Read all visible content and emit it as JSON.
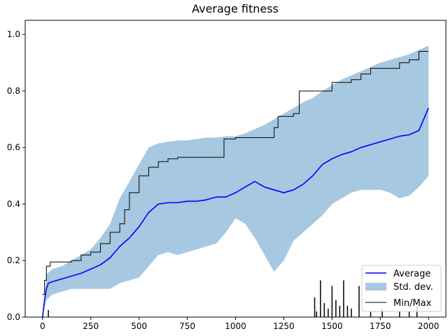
{
  "chart_data": {
    "type": "line",
    "title": "Average fitness",
    "xlabel": "",
    "ylabel": "",
    "xlim": [
      -90,
      2090
    ],
    "ylim": [
      0,
      1.05
    ],
    "x_ticks": [
      0,
      250,
      500,
      750,
      1000,
      1250,
      1500,
      1750,
      2000
    ],
    "x_tick_labels": [
      "0",
      "250",
      "500",
      "750",
      "1000",
      "1250",
      "1500",
      "1750",
      "2000"
    ],
    "y_ticks": [
      0,
      0.2,
      0.4,
      0.6,
      0.8,
      1.0
    ],
    "y_tick_labels": [
      "0.0",
      "0.2",
      "0.4",
      "0.6",
      "0.8",
      "1.0"
    ],
    "grid": false,
    "legend_position": "bottom-right",
    "colors": {
      "average": "#0000ff",
      "std": "#a6c8e1",
      "minmax": "#000000"
    },
    "series": [
      {
        "name": "Average",
        "style": "line",
        "x": [
          0,
          10,
          20,
          30,
          50,
          100,
          150,
          200,
          250,
          300,
          350,
          400,
          450,
          500,
          550,
          600,
          650,
          700,
          750,
          800,
          850,
          900,
          950,
          1000,
          1050,
          1100,
          1150,
          1200,
          1250,
          1300,
          1350,
          1400,
          1450,
          1500,
          1550,
          1600,
          1650,
          1700,
          1750,
          1800,
          1850,
          1900,
          1950,
          2000
        ],
        "y": [
          0.0,
          0.06,
          0.1,
          0.12,
          0.125,
          0.135,
          0.145,
          0.155,
          0.17,
          0.185,
          0.21,
          0.25,
          0.28,
          0.32,
          0.37,
          0.4,
          0.405,
          0.405,
          0.41,
          0.41,
          0.415,
          0.425,
          0.425,
          0.44,
          0.46,
          0.48,
          0.46,
          0.45,
          0.44,
          0.45,
          0.47,
          0.5,
          0.54,
          0.56,
          0.575,
          0.585,
          0.6,
          0.61,
          0.62,
          0.63,
          0.64,
          0.645,
          0.66,
          0.74
        ]
      },
      {
        "name": "Std. dev.",
        "style": "band",
        "x": [
          0,
          20,
          50,
          100,
          150,
          200,
          250,
          300,
          350,
          400,
          450,
          500,
          550,
          600,
          650,
          700,
          750,
          800,
          850,
          900,
          950,
          1000,
          1050,
          1100,
          1150,
          1200,
          1250,
          1300,
          1350,
          1400,
          1450,
          1500,
          1550,
          1600,
          1650,
          1700,
          1750,
          1800,
          1850,
          1900,
          1950,
          2000
        ],
        "upper": [
          0.0,
          0.15,
          0.17,
          0.18,
          0.2,
          0.22,
          0.24,
          0.28,
          0.33,
          0.42,
          0.48,
          0.54,
          0.6,
          0.615,
          0.62,
          0.625,
          0.625,
          0.63,
          0.635,
          0.635,
          0.64,
          0.64,
          0.65,
          0.665,
          0.68,
          0.7,
          0.72,
          0.74,
          0.76,
          0.775,
          0.8,
          0.82,
          0.84,
          0.855,
          0.87,
          0.885,
          0.9,
          0.91,
          0.92,
          0.93,
          0.945,
          0.96
        ],
        "lower": [
          0.0,
          0.06,
          0.08,
          0.09,
          0.1,
          0.1,
          0.1,
          0.1,
          0.1,
          0.12,
          0.13,
          0.14,
          0.18,
          0.22,
          0.23,
          0.22,
          0.23,
          0.24,
          0.25,
          0.26,
          0.3,
          0.35,
          0.33,
          0.28,
          0.22,
          0.16,
          0.2,
          0.27,
          0.3,
          0.33,
          0.36,
          0.4,
          0.42,
          0.44,
          0.45,
          0.45,
          0.45,
          0.44,
          0.42,
          0.43,
          0.46,
          0.5
        ]
      },
      {
        "name": "Min/Max",
        "style": "step",
        "x": [
          0,
          10,
          20,
          40,
          50,
          150,
          200,
          250,
          300,
          350,
          400,
          425,
          450,
          500,
          550,
          600,
          650,
          700,
          750,
          940,
          1000,
          1200,
          1220,
          1300,
          1330,
          1340,
          1500,
          1600,
          1650,
          1700,
          1850,
          1900,
          1950,
          2000
        ],
        "y": [
          0.08,
          0.13,
          0.18,
          0.195,
          0.195,
          0.2,
          0.22,
          0.23,
          0.26,
          0.3,
          0.33,
          0.38,
          0.44,
          0.5,
          0.53,
          0.55,
          0.56,
          0.565,
          0.565,
          0.63,
          0.635,
          0.67,
          0.71,
          0.72,
          0.8,
          0.8,
          0.83,
          0.84,
          0.86,
          0.88,
          0.9,
          0.91,
          0.94,
          0.94
        ],
        "min_spikes_x": [
          30,
          1410,
          1420,
          1440,
          1460,
          1480,
          1500,
          1520,
          1540,
          1560,
          1580,
          1600,
          1640,
          1700,
          1760,
          1850,
          1900,
          1940
        ],
        "min_spikes_y": [
          0.025,
          0.07,
          0.02,
          0.13,
          0.05,
          0.03,
          0.11,
          0.06,
          0.04,
          0.13,
          0.04,
          0.03,
          0.11,
          0.02,
          0.03,
          0.02,
          0.02,
          0.04
        ]
      }
    ]
  }
}
